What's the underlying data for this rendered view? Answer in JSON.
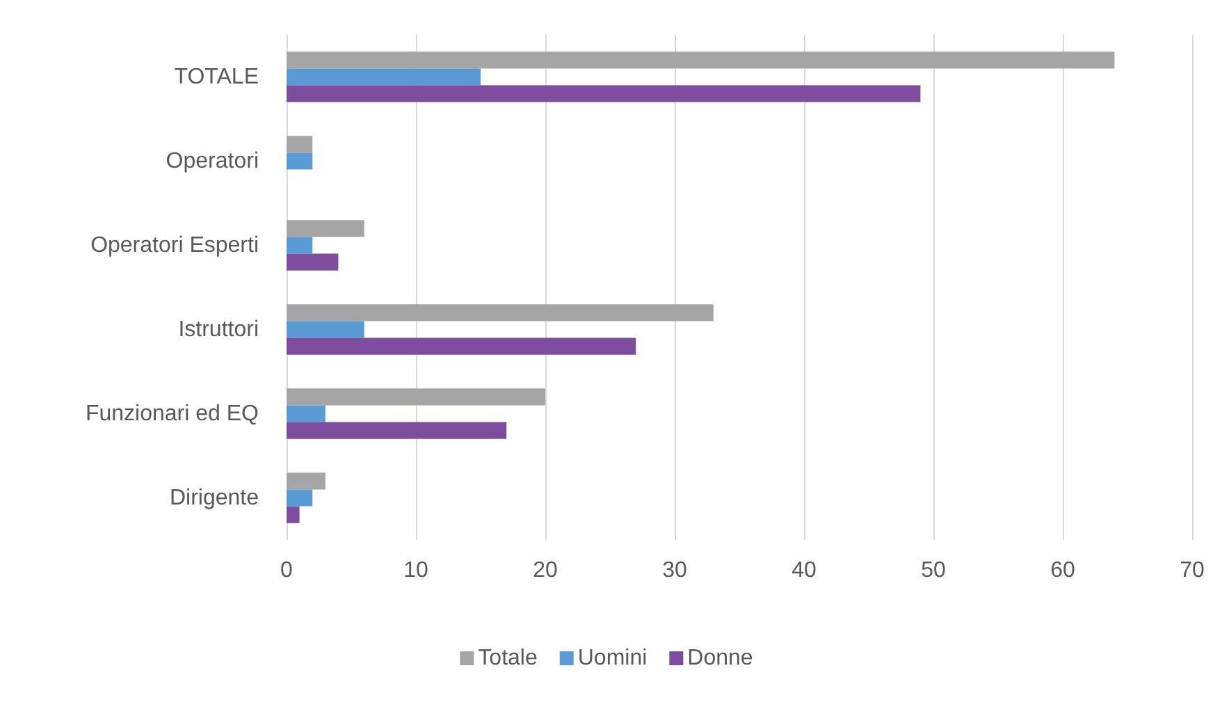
{
  "chart_data": {
    "type": "bar",
    "orientation": "horizontal",
    "categories": [
      "TOTALE",
      "Operatori",
      "Operatori Esperti",
      "Istruttori",
      "Funzionari ed EQ",
      "Dirigente"
    ],
    "series": [
      {
        "name": "Totale",
        "color": "#a5a5a5",
        "values": [
          64,
          2,
          6,
          33,
          20,
          3
        ]
      },
      {
        "name": "Uomini",
        "color": "#5b9bd5",
        "values": [
          15,
          2,
          2,
          6,
          3,
          2
        ]
      },
      {
        "name": "Donne",
        "color": "#7e4e9e",
        "values": [
          49,
          0,
          4,
          27,
          17,
          1
        ]
      }
    ],
    "xlim": [
      0,
      70
    ],
    "xticks": [
      0,
      10,
      20,
      30,
      40,
      50,
      60,
      70
    ],
    "grid": "x",
    "legend": "bottom"
  }
}
